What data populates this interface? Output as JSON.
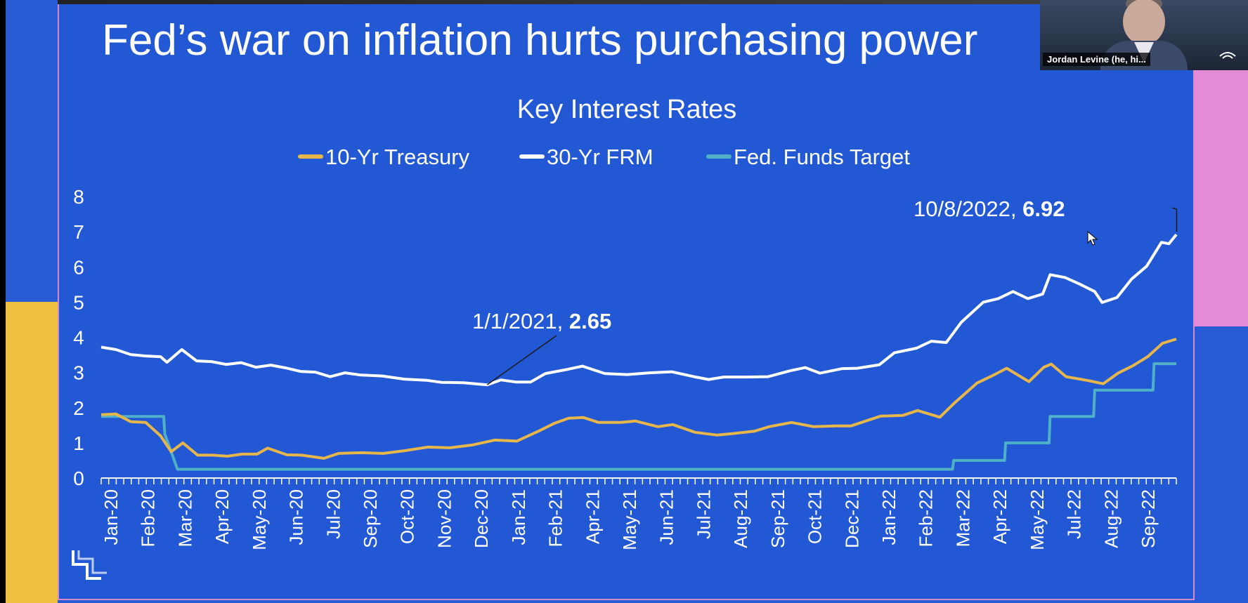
{
  "slide": {
    "title": "Fed’s war on inflation hurts purchasing power"
  },
  "video_tile": {
    "participant_name": "Jordan Levine (he, hi..."
  },
  "colors": {
    "background": "#2358d4",
    "treasury": "#e6b64a",
    "frm": "#ffffff",
    "fed_funds": "#4fb1c8",
    "frame_pink": "#e48ad6",
    "frame_yellow": "#f0c040"
  },
  "chart_data": {
    "type": "line",
    "title": "Key Interest Rates",
    "legend_position": "top",
    "ylim": [
      0,
      8
    ],
    "yticks": [
      "0",
      "1",
      "2",
      "3",
      "4",
      "5",
      "6",
      "7",
      "8"
    ],
    "xticks": [
      "Jan-20",
      "Feb-20",
      "Mar-20",
      "Apr-20",
      "May-20",
      "Jun-20",
      "Jul-20",
      "Sep-20",
      "Oct-20",
      "Nov-20",
      "Dec-20",
      "Jan-21",
      "Feb-21",
      "Apr-21",
      "May-21",
      "Jun-21",
      "Jul-21",
      "Aug-21",
      "Sep-21",
      "Oct-21",
      "Dec-21",
      "Jan-22",
      "Feb-22",
      "Mar-22",
      "Apr-22",
      "May-22",
      "Jul-22",
      "Aug-22",
      "Sep-22"
    ],
    "x_start": "2020-01-03",
    "x_end": "2022-10-13",
    "series": [
      {
        "name": "10-Yr Treasury",
        "color": "#e6b64a",
        "points": [
          [
            "2020-01-03",
            1.8
          ],
          [
            "2020-01-17",
            1.82
          ],
          [
            "2020-01-31",
            1.6
          ],
          [
            "2020-02-14",
            1.58
          ],
          [
            "2020-02-28",
            1.2
          ],
          [
            "2020-03-09",
            0.75
          ],
          [
            "2020-03-20",
            1.0
          ],
          [
            "2020-04-03",
            0.65
          ],
          [
            "2020-04-17",
            0.65
          ],
          [
            "2020-05-01",
            0.62
          ],
          [
            "2020-05-15",
            0.68
          ],
          [
            "2020-05-29",
            0.68
          ],
          [
            "2020-06-08",
            0.85
          ],
          [
            "2020-06-26",
            0.66
          ],
          [
            "2020-07-10",
            0.65
          ],
          [
            "2020-07-31",
            0.56
          ],
          [
            "2020-08-14",
            0.7
          ],
          [
            "2020-09-04",
            0.72
          ],
          [
            "2020-09-25",
            0.7
          ],
          [
            "2020-10-16",
            0.78
          ],
          [
            "2020-11-06",
            0.88
          ],
          [
            "2020-11-27",
            0.86
          ],
          [
            "2020-12-18",
            0.94
          ],
          [
            "2021-01-08",
            1.08
          ],
          [
            "2021-01-29",
            1.05
          ],
          [
            "2021-02-19",
            1.34
          ],
          [
            "2021-03-05",
            1.55
          ],
          [
            "2021-03-19",
            1.7
          ],
          [
            "2021-04-02",
            1.72
          ],
          [
            "2021-04-16",
            1.58
          ],
          [
            "2021-05-07",
            1.58
          ],
          [
            "2021-05-21",
            1.62
          ],
          [
            "2021-06-11",
            1.46
          ],
          [
            "2021-06-25",
            1.52
          ],
          [
            "2021-07-16",
            1.3
          ],
          [
            "2021-08-06",
            1.22
          ],
          [
            "2021-08-20",
            1.26
          ],
          [
            "2021-09-10",
            1.33
          ],
          [
            "2021-09-24",
            1.46
          ],
          [
            "2021-10-15",
            1.58
          ],
          [
            "2021-11-05",
            1.46
          ],
          [
            "2021-11-26",
            1.48
          ],
          [
            "2021-12-10",
            1.48
          ],
          [
            "2022-01-07",
            1.76
          ],
          [
            "2022-01-28",
            1.78
          ],
          [
            "2022-02-11",
            1.92
          ],
          [
            "2022-03-04",
            1.73
          ],
          [
            "2022-03-18",
            2.14
          ],
          [
            "2022-04-08",
            2.7
          ],
          [
            "2022-04-22",
            2.9
          ],
          [
            "2022-05-06",
            3.12
          ],
          [
            "2022-05-27",
            2.74
          ],
          [
            "2022-06-10",
            3.15
          ],
          [
            "2022-06-17",
            3.24
          ],
          [
            "2022-07-01",
            2.88
          ],
          [
            "2022-07-22",
            2.77
          ],
          [
            "2022-08-05",
            2.68
          ],
          [
            "2022-08-19",
            2.98
          ],
          [
            "2022-09-02",
            3.19
          ],
          [
            "2022-09-16",
            3.45
          ],
          [
            "2022-09-30",
            3.83
          ],
          [
            "2022-10-13",
            3.95
          ]
        ]
      },
      {
        "name": "30-Yr FRM",
        "color": "#ffffff",
        "points": [
          [
            "2020-01-03",
            3.72
          ],
          [
            "2020-01-17",
            3.65
          ],
          [
            "2020-01-31",
            3.51
          ],
          [
            "2020-02-14",
            3.47
          ],
          [
            "2020-02-28",
            3.45
          ],
          [
            "2020-03-05",
            3.29
          ],
          [
            "2020-03-19",
            3.65
          ],
          [
            "2020-04-02",
            3.33
          ],
          [
            "2020-04-16",
            3.31
          ],
          [
            "2020-04-30",
            3.23
          ],
          [
            "2020-05-14",
            3.28
          ],
          [
            "2020-05-28",
            3.15
          ],
          [
            "2020-06-11",
            3.21
          ],
          [
            "2020-06-25",
            3.13
          ],
          [
            "2020-07-09",
            3.03
          ],
          [
            "2020-07-23",
            3.01
          ],
          [
            "2020-08-06",
            2.88
          ],
          [
            "2020-08-20",
            2.99
          ],
          [
            "2020-09-03",
            2.93
          ],
          [
            "2020-09-24",
            2.9
          ],
          [
            "2020-10-15",
            2.81
          ],
          [
            "2020-11-05",
            2.78
          ],
          [
            "2020-11-19",
            2.72
          ],
          [
            "2020-12-10",
            2.71
          ],
          [
            "2021-01-01",
            2.65
          ],
          [
            "2021-01-14",
            2.79
          ],
          [
            "2021-01-28",
            2.73
          ],
          [
            "2021-02-11",
            2.73
          ],
          [
            "2021-02-25",
            2.97
          ],
          [
            "2021-03-18",
            3.09
          ],
          [
            "2021-04-01",
            3.18
          ],
          [
            "2021-04-22",
            2.97
          ],
          [
            "2021-05-13",
            2.94
          ],
          [
            "2021-06-03",
            2.99
          ],
          [
            "2021-06-24",
            3.02
          ],
          [
            "2021-07-15",
            2.88
          ],
          [
            "2021-07-29",
            2.8
          ],
          [
            "2021-08-12",
            2.87
          ],
          [
            "2021-09-02",
            2.87
          ],
          [
            "2021-09-23",
            2.88
          ],
          [
            "2021-10-14",
            3.05
          ],
          [
            "2021-10-28",
            3.14
          ],
          [
            "2021-11-11",
            2.98
          ],
          [
            "2021-12-02",
            3.11
          ],
          [
            "2021-12-16",
            3.12
          ],
          [
            "2022-01-06",
            3.22
          ],
          [
            "2022-01-20",
            3.56
          ],
          [
            "2022-02-10",
            3.69
          ],
          [
            "2022-02-24",
            3.89
          ],
          [
            "2022-03-10",
            3.85
          ],
          [
            "2022-03-24",
            4.42
          ],
          [
            "2022-04-14",
            5.0
          ],
          [
            "2022-04-28",
            5.1
          ],
          [
            "2022-05-12",
            5.3
          ],
          [
            "2022-05-26",
            5.1
          ],
          [
            "2022-06-09",
            5.23
          ],
          [
            "2022-06-16",
            5.78
          ],
          [
            "2022-06-30",
            5.7
          ],
          [
            "2022-07-14",
            5.51
          ],
          [
            "2022-07-28",
            5.3
          ],
          [
            "2022-08-04",
            4.99
          ],
          [
            "2022-08-18",
            5.13
          ],
          [
            "2022-09-01",
            5.66
          ],
          [
            "2022-09-15",
            6.02
          ],
          [
            "2022-09-29",
            6.7
          ],
          [
            "2022-10-06",
            6.66
          ],
          [
            "2022-10-13",
            6.92
          ]
        ]
      },
      {
        "name": "Fed. Funds Target",
        "color": "#4fb1c8",
        "points": [
          [
            "2020-01-03",
            1.75
          ],
          [
            "2020-03-02",
            1.75
          ],
          [
            "2020-03-03",
            1.25
          ],
          [
            "2020-03-15",
            0.25
          ],
          [
            "2022-03-16",
            0.25
          ],
          [
            "2022-03-17",
            0.5
          ],
          [
            "2022-05-04",
            0.5
          ],
          [
            "2022-05-05",
            1.0
          ],
          [
            "2022-06-15",
            1.0
          ],
          [
            "2022-06-16",
            1.75
          ],
          [
            "2022-07-27",
            1.75
          ],
          [
            "2022-07-28",
            2.5
          ],
          [
            "2022-09-21",
            2.5
          ],
          [
            "2022-09-22",
            3.25
          ],
          [
            "2022-10-13",
            3.25
          ]
        ]
      }
    ],
    "annotations": [
      {
        "date": "2021-01-01",
        "prefix": "1/1/2021, ",
        "value": "2.65"
      },
      {
        "date": "2022-10-08",
        "prefix": "10/8/2022, ",
        "value": "6.92"
      }
    ]
  }
}
